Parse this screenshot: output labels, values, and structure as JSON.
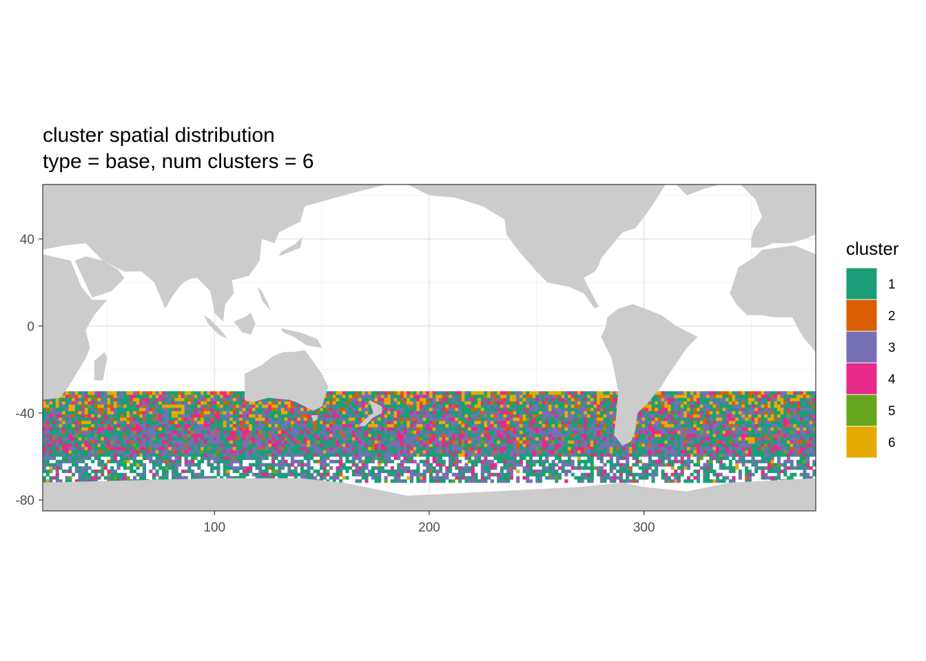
{
  "chart_data": {
    "type": "heatmap",
    "title": "cluster spatial distribution",
    "subtitle": "type = base, num clusters = 6",
    "xlabel": "",
    "ylabel": "",
    "xlim": [
      20,
      380
    ],
    "ylim": [
      -85,
      65
    ],
    "x_ticks": [
      100,
      200,
      300
    ],
    "y_ticks": [
      40,
      0,
      -40,
      -80
    ],
    "grid": true,
    "land_color": "#cccccc",
    "legend": {
      "title": "cluster",
      "placement": "right",
      "entries": [
        {
          "label": "1",
          "color": "#1b9e77"
        },
        {
          "label": "2",
          "color": "#d95f02"
        },
        {
          "label": "3",
          "color": "#7570b3"
        },
        {
          "label": "4",
          "color": "#e7298a"
        },
        {
          "label": "5",
          "color": "#66a61e"
        },
        {
          "label": "6",
          "color": "#e6ab02"
        }
      ]
    },
    "data_extent": {
      "lon": [
        20,
        380
      ],
      "lat": [
        -72,
        -30
      ]
    },
    "land": [
      {
        "name": "Antarctica",
        "points": [
          [
            20,
            -72
          ],
          [
            60,
            -71
          ],
          [
            100,
            -70
          ],
          [
            140,
            -70
          ],
          [
            160,
            -72
          ],
          [
            190,
            -78
          ],
          [
            230,
            -76
          ],
          [
            270,
            -74
          ],
          [
            290,
            -72
          ],
          [
            300,
            -74
          ],
          [
            320,
            -76
          ],
          [
            340,
            -72
          ],
          [
            380,
            -70
          ],
          [
            380,
            -85
          ],
          [
            20,
            -85
          ]
        ]
      },
      {
        "name": "Africa",
        "points": [
          [
            20,
            -34
          ],
          [
            28,
            -33
          ],
          [
            32,
            -28
          ],
          [
            40,
            -15
          ],
          [
            42,
            -10
          ],
          [
            40,
            -2
          ],
          [
            44,
            5
          ],
          [
            50,
            12
          ],
          [
            43,
            12
          ],
          [
            38,
            18
          ],
          [
            33,
            30
          ],
          [
            20,
            33
          ],
          [
            20,
            -34
          ]
        ]
      },
      {
        "name": "Madagascar",
        "points": [
          [
            44,
            -25
          ],
          [
            48,
            -25
          ],
          [
            50,
            -15
          ],
          [
            49,
            -12
          ],
          [
            44,
            -16
          ]
        ]
      },
      {
        "name": "Arabia",
        "points": [
          [
            35,
            30
          ],
          [
            43,
            13
          ],
          [
            52,
            16
          ],
          [
            58,
            22
          ],
          [
            55,
            26
          ],
          [
            48,
            30
          ],
          [
            40,
            32
          ]
        ]
      },
      {
        "name": "Eurasia",
        "points": [
          [
            20,
            35
          ],
          [
            30,
            37
          ],
          [
            40,
            38
          ],
          [
            48,
            30
          ],
          [
            58,
            25
          ],
          [
            66,
            25
          ],
          [
            72,
            20
          ],
          [
            77,
            8
          ],
          [
            80,
            15
          ],
          [
            88,
            22
          ],
          [
            92,
            22
          ],
          [
            98,
            16
          ],
          [
            100,
            6
          ],
          [
            104,
            2
          ],
          [
            105,
            10
          ],
          [
            109,
            15
          ],
          [
            108,
            21
          ],
          [
            116,
            23
          ],
          [
            121,
            30
          ],
          [
            122,
            40
          ],
          [
            128,
            38
          ],
          [
            130,
            43
          ],
          [
            140,
            48
          ],
          [
            142,
            55
          ],
          [
            160,
            60
          ],
          [
            180,
            65
          ],
          [
            20,
            65
          ]
        ]
      },
      {
        "name": "India",
        "points": [
          [
            68,
            24
          ],
          [
            72,
            20
          ],
          [
            77,
            8
          ],
          [
            80,
            13
          ],
          [
            85,
            20
          ],
          [
            90,
            22
          ],
          [
            80,
            28
          ],
          [
            70,
            28
          ]
        ]
      },
      {
        "name": "Japan",
        "points": [
          [
            130,
            32
          ],
          [
            135,
            34
          ],
          [
            140,
            36
          ],
          [
            141,
            41
          ],
          [
            138,
            38
          ],
          [
            131,
            34
          ]
        ]
      },
      {
        "name": "Borneo",
        "points": [
          [
            109,
            2
          ],
          [
            113,
            -3
          ],
          [
            117,
            -4
          ],
          [
            119,
            1
          ],
          [
            117,
            6
          ],
          [
            114,
            4
          ]
        ]
      },
      {
        "name": "Sumatra",
        "points": [
          [
            95,
            5
          ],
          [
            98,
            3
          ],
          [
            104,
            -3
          ],
          [
            106,
            -6
          ],
          [
            102,
            -4
          ],
          [
            97,
            1
          ]
        ]
      },
      {
        "name": "New Guinea",
        "points": [
          [
            131,
            -1
          ],
          [
            140,
            -3
          ],
          [
            148,
            -6
          ],
          [
            150,
            -10
          ],
          [
            143,
            -9
          ],
          [
            137,
            -5
          ],
          [
            132,
            -3
          ]
        ]
      },
      {
        "name": "Philippines",
        "points": [
          [
            120,
            18
          ],
          [
            122,
            12
          ],
          [
            126,
            7
          ],
          [
            125,
            10
          ],
          [
            122,
            16
          ]
        ]
      },
      {
        "name": "Australia",
        "points": [
          [
            114,
            -22
          ],
          [
            114,
            -34
          ],
          [
            118,
            -35
          ],
          [
            125,
            -33
          ],
          [
            135,
            -34
          ],
          [
            138,
            -35
          ],
          [
            146,
            -39
          ],
          [
            150,
            -37
          ],
          [
            153,
            -28
          ],
          [
            150,
            -22
          ],
          [
            145,
            -15
          ],
          [
            142,
            -11
          ],
          [
            137,
            -12
          ],
          [
            132,
            -12
          ],
          [
            127,
            -14
          ],
          [
            122,
            -18
          ]
        ]
      },
      {
        "name": "Tasmania",
        "points": [
          [
            145,
            -41
          ],
          [
            148,
            -41
          ],
          [
            148,
            -43
          ],
          [
            146,
            -44
          ]
        ]
      },
      {
        "name": "North America",
        "points": [
          [
            190,
            65
          ],
          [
            200,
            60
          ],
          [
            212,
            59
          ],
          [
            225,
            55
          ],
          [
            235,
            49
          ],
          [
            236,
            42
          ],
          [
            242,
            34
          ],
          [
            250,
            25
          ],
          [
            255,
            20
          ],
          [
            265,
            18
          ],
          [
            272,
            15
          ],
          [
            277,
            8
          ],
          [
            279,
            9
          ],
          [
            275,
            16
          ],
          [
            272,
            22
          ],
          [
            277,
            25
          ],
          [
            279,
            28
          ],
          [
            280,
            31
          ],
          [
            284,
            36
          ],
          [
            290,
            43
          ],
          [
            296,
            45
          ],
          [
            300,
            50
          ],
          [
            305,
            57
          ],
          [
            310,
            65
          ]
        ]
      },
      {
        "name": "Greenland",
        "points": [
          [
            315,
            65
          ],
          [
            320,
            60
          ],
          [
            328,
            63
          ],
          [
            335,
            65
          ]
        ]
      },
      {
        "name": "South America",
        "points": [
          [
            282,
            -1
          ],
          [
            280,
            -5
          ],
          [
            285,
            -15
          ],
          [
            288,
            -30
          ],
          [
            287,
            -42
          ],
          [
            286,
            -50
          ],
          [
            290,
            -55
          ],
          [
            294,
            -53
          ],
          [
            296,
            -48
          ],
          [
            297,
            -40
          ],
          [
            302,
            -35
          ],
          [
            308,
            -28
          ],
          [
            311,
            -23
          ],
          [
            320,
            -10
          ],
          [
            325,
            -5
          ],
          [
            315,
            0
          ],
          [
            308,
            5
          ],
          [
            295,
            10
          ],
          [
            288,
            8
          ],
          [
            283,
            4
          ]
        ]
      },
      {
        "name": "Europe",
        "points": [
          [
            350,
            36
          ],
          [
            355,
            36
          ],
          [
            360,
            38
          ],
          [
            368,
            38
          ],
          [
            375,
            40
          ],
          [
            380,
            42
          ],
          [
            380,
            65
          ],
          [
            345,
            65
          ],
          [
            352,
            58
          ],
          [
            355,
            50
          ],
          [
            351,
            44
          ],
          [
            350,
            40
          ]
        ]
      },
      {
        "name": "West Africa",
        "points": [
          [
            340,
            15
          ],
          [
            343,
            10
          ],
          [
            348,
            5
          ],
          [
            355,
            5
          ],
          [
            360,
            4
          ],
          [
            369,
            4
          ],
          [
            374,
            -5
          ],
          [
            380,
            -12
          ],
          [
            380,
            33
          ],
          [
            370,
            37
          ],
          [
            355,
            35
          ],
          [
            352,
            32
          ],
          [
            344,
            27
          ],
          [
            342,
            21
          ]
        ]
      },
      {
        "name": "New Zealand",
        "points": [
          [
            172,
            -34
          ],
          [
            178,
            -37
          ],
          [
            178,
            -40
          ],
          [
            174,
            -42
          ],
          [
            170,
            -46
          ],
          [
            167,
            -46
          ],
          [
            170,
            -43
          ],
          [
            174,
            -40
          ]
        ]
      }
    ]
  }
}
